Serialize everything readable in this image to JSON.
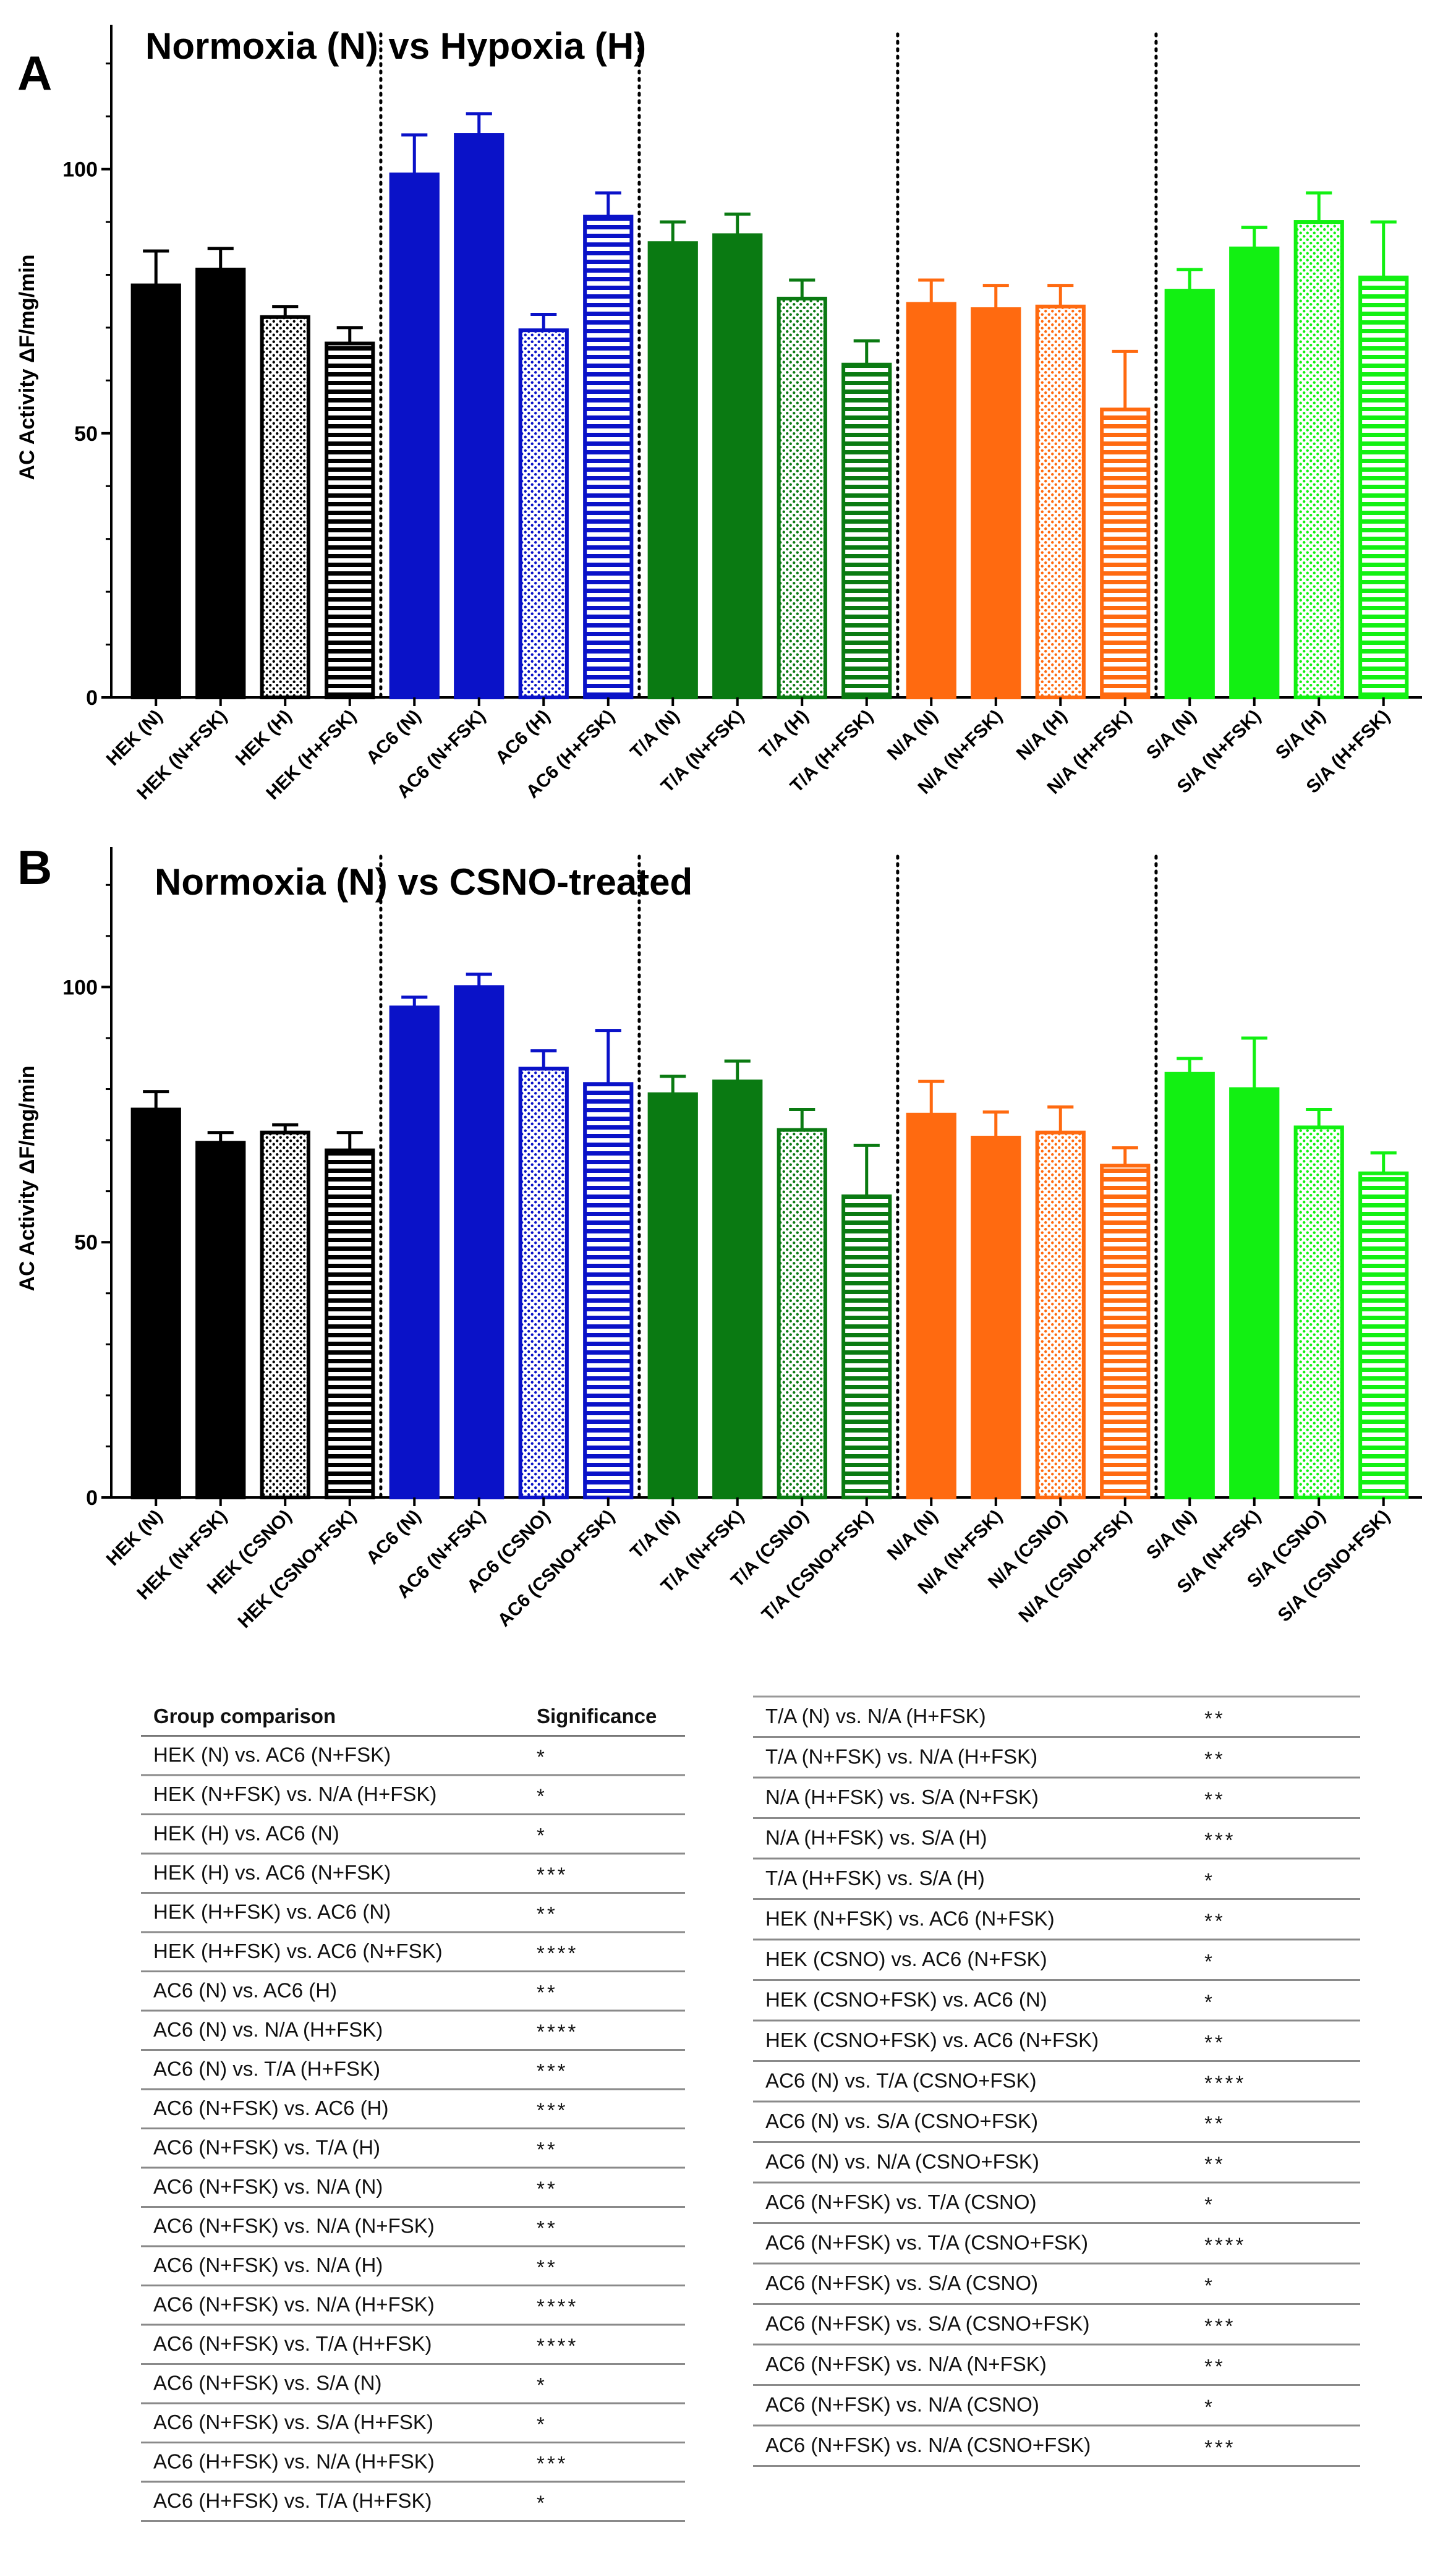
{
  "chart_data": [
    {
      "type": "bar",
      "panel": "A",
      "title": "Normoxia (N) vs Hypoxia (H)",
      "ylabel": "AC Activity ΔF/mg/min",
      "xlabel": "",
      "ylim": [
        0,
        125
      ],
      "yticks": [
        0,
        50,
        100
      ],
      "categories": [
        "HEK (N)",
        "HEK (N+FSK)",
        "HEK (H)",
        "HEK (H+FSK)",
        "AC6 (N)",
        "AC6 (N+FSK)",
        "AC6 (H)",
        "AC6 (H+FSK)",
        "T/A (N)",
        "T/A (N+FSK)",
        "T/A  (H)",
        "T/A  (H+FSK)",
        "N/A (N)",
        "N/A (N+FSK)",
        "N/A (H)",
        "N/A (H+FSK)",
        "S/A (N)",
        "S/A (N+FSK)",
        "S/A (H)",
        "S/A (H+FSK)"
      ],
      "values": [
        78,
        81,
        72,
        67,
        99,
        106.5,
        69.5,
        91,
        86,
        87.5,
        75.5,
        63,
        74.5,
        73.5,
        74,
        54.5,
        77,
        85,
        90,
        79.5
      ],
      "errors": [
        6.5,
        4,
        2,
        3,
        7.5,
        4,
        3,
        4.5,
        4,
        4,
        3.5,
        4.5,
        4.5,
        4.5,
        4,
        11,
        4,
        4,
        5.5,
        10.5
      ],
      "fills": [
        "solid",
        "solid",
        "dots",
        "hstripes",
        "solid",
        "solid",
        "dots",
        "hstripes",
        "solid",
        "solid",
        "dots",
        "hstripes",
        "solid",
        "solid",
        "dots",
        "hstripes",
        "solid",
        "solid",
        "dots",
        "hstripes"
      ],
      "group_colors": [
        "#000000",
        "#0a12c8",
        "#0a7a12",
        "#ff6a10",
        "#12f012"
      ],
      "dividers_after": [
        4,
        8,
        12,
        16
      ]
    },
    {
      "type": "bar",
      "panel": "B",
      "title": "Normoxia (N) vs CSNO-treated",
      "ylabel": "AC Activity ΔF/mg/min",
      "xlabel": "",
      "ylim": [
        0,
        125
      ],
      "yticks": [
        0,
        50,
        100
      ],
      "categories": [
        "HEK (N)",
        "HEK (N+FSK)",
        "HEK (CSNO)",
        "HEK (CSNO+FSK)",
        "AC6 (N)",
        "AC6 (N+FSK)",
        "AC6 (CSNO)",
        "AC6 (CSNO+FSK)",
        "T/A (N)",
        "T/A (N+FSK)",
        "T/A (CSNO)",
        "T/A (CSNO+FSK)",
        "N/A (N)",
        "N/A (N+FSK)",
        "N/A (CSNO)",
        "N/A (CSNO+FSK)",
        "S/A (N)",
        "S/A (N+FSK)",
        "S/A (CSNO)",
        "S/A (CSNO+FSK)"
      ],
      "values": [
        76,
        69.5,
        71.5,
        68,
        96,
        100,
        84,
        81,
        79,
        81.5,
        72,
        59,
        75,
        70.5,
        71.5,
        65,
        83,
        80,
        72.5,
        63.5
      ],
      "errors": [
        3.5,
        2,
        1.5,
        3.5,
        2,
        2.5,
        3.5,
        10.5,
        3.5,
        4,
        4,
        10,
        6.5,
        5,
        5,
        3.5,
        3,
        10,
        3.5,
        4
      ],
      "fills": [
        "solid",
        "solid",
        "dots",
        "hstripes",
        "solid",
        "solid",
        "dots",
        "hstripes",
        "solid",
        "solid",
        "dots",
        "hstripes",
        "solid",
        "solid",
        "dots",
        "hstripes",
        "solid",
        "solid",
        "dots",
        "hstripes"
      ],
      "group_colors": [
        "#000000",
        "#0a12c8",
        "#0a7a12",
        "#ff6a10",
        "#12f012"
      ],
      "dividers_after": [
        4,
        8,
        12,
        16
      ]
    },
    {
      "type": "table",
      "headers": [
        "Group comparison",
        "Significance"
      ],
      "left_rows": [
        [
          "HEK (N) vs. AC6 (N+FSK)",
          "*"
        ],
        [
          "HEK (N+FSK) vs. N/A (H+FSK)",
          "*"
        ],
        [
          "HEK (H) vs. AC6 (N)",
          "*"
        ],
        [
          "HEK (H) vs. AC6 (N+FSK)",
          "***"
        ],
        [
          "HEK (H+FSK) vs. AC6 (N)",
          "**"
        ],
        [
          "HEK (H+FSK) vs. AC6 (N+FSK)",
          "****"
        ],
        [
          "AC6 (N) vs. AC6 (H)",
          "**"
        ],
        [
          "AC6 (N) vs. N/A (H+FSK)",
          "****"
        ],
        [
          "AC6 (N) vs. T/A (H+FSK)",
          "***"
        ],
        [
          "AC6 (N+FSK) vs. AC6 (H)",
          "***"
        ],
        [
          "AC6 (N+FSK) vs. T/A (H)",
          "**"
        ],
        [
          "AC6 (N+FSK) vs. N/A (N)",
          "**"
        ],
        [
          "AC6 (N+FSK) vs. N/A (N+FSK)",
          "**"
        ],
        [
          "AC6 (N+FSK) vs. N/A (H)",
          "**"
        ],
        [
          "AC6 (N+FSK) vs. N/A (H+FSK)",
          "****"
        ],
        [
          "AC6 (N+FSK) vs. T/A (H+FSK)",
          "****"
        ],
        [
          "AC6 (N+FSK) vs. S/A (N)",
          "*"
        ],
        [
          "AC6 (N+FSK) vs. S/A (H+FSK)",
          "*"
        ],
        [
          "AC6 (H+FSK) vs. N/A (H+FSK)",
          "***"
        ],
        [
          "AC6 (H+FSK) vs. T/A (H+FSK)",
          "*"
        ]
      ],
      "right_rows": [
        [
          "T/A (N) vs. N/A (H+FSK)",
          "**"
        ],
        [
          "T/A (N+FSK) vs. N/A (H+FSK)",
          "**"
        ],
        [
          "N/A (H+FSK) vs. S/A (N+FSK)",
          "**"
        ],
        [
          "N/A (H+FSK) vs. S/A (H)",
          "***"
        ],
        [
          " T/A (H+FSK) vs. S/A (H)",
          "*"
        ],
        [
          "HEK (N+FSK) vs. AC6 (N+FSK)",
          "**"
        ],
        [
          "HEK (CSNO) vs. AC6 (N+FSK)",
          "*"
        ],
        [
          "HEK (CSNO+FSK) vs. AC6 (N)",
          "*"
        ],
        [
          "HEK (CSNO+FSK) vs. AC6 (N+FSK)",
          "**"
        ],
        [
          "AC6 (N) vs. T/A (CSNO+FSK)",
          "****"
        ],
        [
          "AC6 (N) vs. S/A (CSNO+FSK)",
          "**"
        ],
        [
          "AC6 (N) vs. N/A (CSNO+FSK)",
          "**"
        ],
        [
          "AC6 (N+FSK) vs. T/A (CSNO)",
          "*"
        ],
        [
          "AC6 (N+FSK) vs. T/A (CSNO+FSK)",
          "****"
        ],
        [
          "AC6 (N+FSK) vs. S/A (CSNO)",
          "*"
        ],
        [
          "AC6 (N+FSK) vs. S/A (CSNO+FSK)",
          "***"
        ],
        [
          "AC6 (N+FSK) vs. N/A (N+FSK)",
          "**"
        ],
        [
          "AC6 (N+FSK) vs. N/A (CSNO)",
          "*"
        ],
        [
          "AC6 (N+FSK) vs. N/A (CSNO+FSK)",
          "***"
        ]
      ]
    }
  ]
}
